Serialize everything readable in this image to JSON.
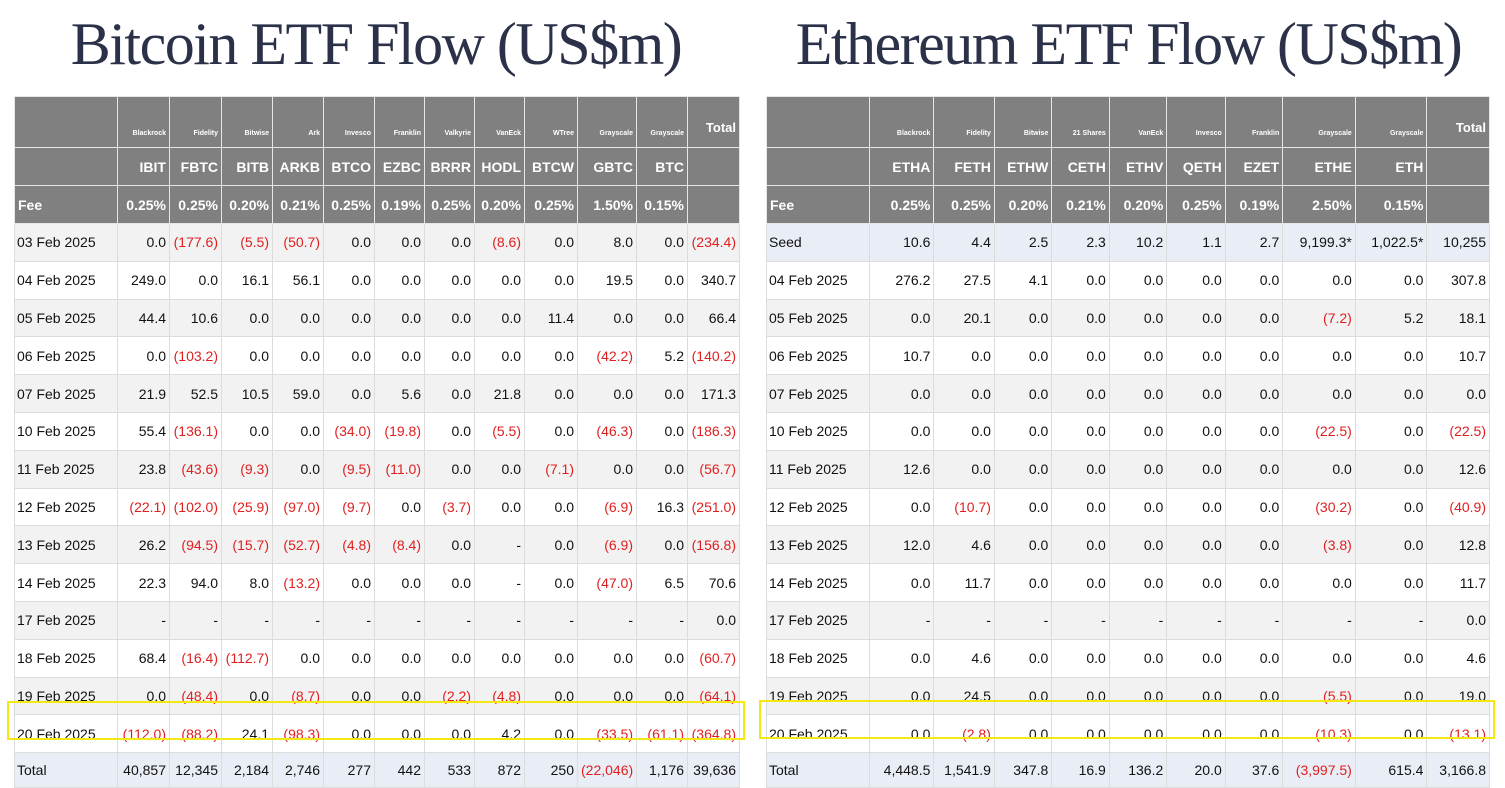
{
  "btc": {
    "title": "Bitcoin ETF Flow (US$m)",
    "issuers": [
      "Blackrock",
      "Fidelity",
      "Bitwise",
      "Ark",
      "Invesco",
      "Franklin",
      "Valkyrie",
      "VanEck",
      "WTree",
      "Grayscale",
      "Grayscale"
    ],
    "total_header": "Total",
    "tickers": [
      "IBIT",
      "FBTC",
      "BITB",
      "ARKB",
      "BTCO",
      "EZBC",
      "BRRR",
      "HODL",
      "BTCW",
      "GBTC",
      "BTC"
    ],
    "fee_label": "Fee",
    "fees": [
      "0.25%",
      "0.25%",
      "0.20%",
      "0.21%",
      "0.25%",
      "0.19%",
      "0.25%",
      "0.20%",
      "0.25%",
      "1.50%",
      "0.15%"
    ],
    "rows": [
      {
        "date": "03 Feb 2025",
        "values": [
          "0.0",
          "(177.6)",
          "(5.5)",
          "(50.7)",
          "0.0",
          "0.0",
          "0.0",
          "(8.6)",
          "0.0",
          "8.0",
          "0.0"
        ],
        "total": "(234.4)"
      },
      {
        "date": "04 Feb 2025",
        "values": [
          "249.0",
          "0.0",
          "16.1",
          "56.1",
          "0.0",
          "0.0",
          "0.0",
          "0.0",
          "0.0",
          "19.5",
          "0.0"
        ],
        "total": "340.7"
      },
      {
        "date": "05 Feb 2025",
        "values": [
          "44.4",
          "10.6",
          "0.0",
          "0.0",
          "0.0",
          "0.0",
          "0.0",
          "0.0",
          "11.4",
          "0.0",
          "0.0"
        ],
        "total": "66.4"
      },
      {
        "date": "06 Feb 2025",
        "values": [
          "0.0",
          "(103.2)",
          "0.0",
          "0.0",
          "0.0",
          "0.0",
          "0.0",
          "0.0",
          "0.0",
          "(42.2)",
          "5.2"
        ],
        "total": "(140.2)"
      },
      {
        "date": "07 Feb 2025",
        "values": [
          "21.9",
          "52.5",
          "10.5",
          "59.0",
          "0.0",
          "5.6",
          "0.0",
          "21.8",
          "0.0",
          "0.0",
          "0.0"
        ],
        "total": "171.3"
      },
      {
        "date": "10 Feb 2025",
        "values": [
          "55.4",
          "(136.1)",
          "0.0",
          "0.0",
          "(34.0)",
          "(19.8)",
          "0.0",
          "(5.5)",
          "0.0",
          "(46.3)",
          "0.0"
        ],
        "total": "(186.3)"
      },
      {
        "date": "11 Feb 2025",
        "values": [
          "23.8",
          "(43.6)",
          "(9.3)",
          "0.0",
          "(9.5)",
          "(11.0)",
          "0.0",
          "0.0",
          "(7.1)",
          "0.0",
          "0.0"
        ],
        "total": "(56.7)"
      },
      {
        "date": "12 Feb 2025",
        "values": [
          "(22.1)",
          "(102.0)",
          "(25.9)",
          "(97.0)",
          "(9.7)",
          "0.0",
          "(3.7)",
          "0.0",
          "0.0",
          "(6.9)",
          "16.3"
        ],
        "total": "(251.0)"
      },
      {
        "date": "13 Feb 2025",
        "values": [
          "26.2",
          "(94.5)",
          "(15.7)",
          "(52.7)",
          "(4.8)",
          "(8.4)",
          "0.0",
          "-",
          "0.0",
          "(6.9)",
          "0.0"
        ],
        "total": "(156.8)"
      },
      {
        "date": "14 Feb 2025",
        "values": [
          "22.3",
          "94.0",
          "8.0",
          "(13.2)",
          "0.0",
          "0.0",
          "0.0",
          "-",
          "0.0",
          "(47.0)",
          "6.5"
        ],
        "total": "70.6"
      },
      {
        "date": "17 Feb 2025",
        "values": [
          "-",
          "-",
          "-",
          "-",
          "-",
          "-",
          "-",
          "-",
          "-",
          "-",
          "-"
        ],
        "total": "0.0"
      },
      {
        "date": "18 Feb 2025",
        "values": [
          "68.4",
          "(16.4)",
          "(112.7)",
          "0.0",
          "0.0",
          "0.0",
          "0.0",
          "0.0",
          "0.0",
          "0.0",
          "0.0"
        ],
        "total": "(60.7)"
      },
      {
        "date": "19 Feb 2025",
        "values": [
          "0.0",
          "(48.4)",
          "0.0",
          "(8.7)",
          "0.0",
          "0.0",
          "(2.2)",
          "(4.8)",
          "0.0",
          "0.0",
          "0.0"
        ],
        "total": "(64.1)"
      },
      {
        "date": "20 Feb 2025",
        "values": [
          "(112.0)",
          "(88.2)",
          "24.1",
          "(98.3)",
          "0.0",
          "0.0",
          "0.0",
          "4.2",
          "0.0",
          "(33.5)",
          "(61.1)"
        ],
        "total": "(364.8)"
      }
    ],
    "total_row": {
      "label": "Total",
      "values": [
        "40,857",
        "12,345",
        "2,184",
        "2,746",
        "277",
        "442",
        "533",
        "872",
        "250",
        "(22,046)",
        "1,176"
      ],
      "total": "39,636"
    }
  },
  "eth": {
    "title": "Ethereum ETF Flow (US$m)",
    "issuers": [
      "Blackrock",
      "Fidelity",
      "Bitwise",
      "21 Shares",
      "VanEck",
      "Invesco",
      "Franklin",
      "Grayscale",
      "Grayscale"
    ],
    "total_header": "Total",
    "tickers": [
      "ETHA",
      "FETH",
      "ETHW",
      "CETH",
      "ETHV",
      "QETH",
      "EZET",
      "ETHE",
      "ETH"
    ],
    "fee_label": "Fee",
    "fees": [
      "0.25%",
      "0.25%",
      "0.20%",
      "0.21%",
      "0.20%",
      "0.25%",
      "0.19%",
      "2.50%",
      "0.15%"
    ],
    "seed": {
      "label": "Seed",
      "values": [
        "10.6",
        "4.4",
        "2.5",
        "2.3",
        "10.2",
        "1.1",
        "2.7",
        "9,199.3*",
        "1,022.5*"
      ],
      "total": "10,255"
    },
    "rows": [
      {
        "date": "04 Feb 2025",
        "values": [
          "276.2",
          "27.5",
          "4.1",
          "0.0",
          "0.0",
          "0.0",
          "0.0",
          "0.0",
          "0.0"
        ],
        "total": "307.8"
      },
      {
        "date": "05 Feb 2025",
        "values": [
          "0.0",
          "20.1",
          "0.0",
          "0.0",
          "0.0",
          "0.0",
          "0.0",
          "(7.2)",
          "5.2"
        ],
        "total": "18.1"
      },
      {
        "date": "06 Feb 2025",
        "values": [
          "10.7",
          "0.0",
          "0.0",
          "0.0",
          "0.0",
          "0.0",
          "0.0",
          "0.0",
          "0.0"
        ],
        "total": "10.7"
      },
      {
        "date": "07 Feb 2025",
        "values": [
          "0.0",
          "0.0",
          "0.0",
          "0.0",
          "0.0",
          "0.0",
          "0.0",
          "0.0",
          "0.0"
        ],
        "total": "0.0"
      },
      {
        "date": "10 Feb 2025",
        "values": [
          "0.0",
          "0.0",
          "0.0",
          "0.0",
          "0.0",
          "0.0",
          "0.0",
          "(22.5)",
          "0.0"
        ],
        "total": "(22.5)"
      },
      {
        "date": "11 Feb 2025",
        "values": [
          "12.6",
          "0.0",
          "0.0",
          "0.0",
          "0.0",
          "0.0",
          "0.0",
          "0.0",
          "0.0"
        ],
        "total": "12.6"
      },
      {
        "date": "12 Feb 2025",
        "values": [
          "0.0",
          "(10.7)",
          "0.0",
          "0.0",
          "0.0",
          "0.0",
          "0.0",
          "(30.2)",
          "0.0"
        ],
        "total": "(40.9)"
      },
      {
        "date": "13 Feb 2025",
        "values": [
          "12.0",
          "4.6",
          "0.0",
          "0.0",
          "0.0",
          "0.0",
          "0.0",
          "(3.8)",
          "0.0"
        ],
        "total": "12.8"
      },
      {
        "date": "14 Feb 2025",
        "values": [
          "0.0",
          "11.7",
          "0.0",
          "0.0",
          "0.0",
          "0.0",
          "0.0",
          "0.0",
          "0.0"
        ],
        "total": "11.7"
      },
      {
        "date": "17 Feb 2025",
        "values": [
          "-",
          "-",
          "-",
          "-",
          "-",
          "-",
          "-",
          "-",
          "-"
        ],
        "total": "0.0"
      },
      {
        "date": "18 Feb 2025",
        "values": [
          "0.0",
          "4.6",
          "0.0",
          "0.0",
          "0.0",
          "0.0",
          "0.0",
          "0.0",
          "0.0"
        ],
        "total": "4.6"
      },
      {
        "date": "19 Feb 2025",
        "values": [
          "0.0",
          "24.5",
          "0.0",
          "0.0",
          "0.0",
          "0.0",
          "0.0",
          "(5.5)",
          "0.0"
        ],
        "total": "19.0"
      },
      {
        "date": "20 Feb 2025",
        "values": [
          "0.0",
          "(2.8)",
          "0.0",
          "0.0",
          "0.0",
          "0.0",
          "0.0",
          "(10.3)",
          "0.0"
        ],
        "total": "(13.1)"
      }
    ],
    "total_row": {
      "label": "Total",
      "values": [
        "4,448.5",
        "1,541.9",
        "347.8",
        "16.9",
        "136.2",
        "20.0",
        "37.6",
        "(3,997.5)",
        "615.4"
      ],
      "total": "3,166.8"
    }
  },
  "colors": {
    "header_bg": "#808080",
    "negative": "#e02020",
    "highlight": "#f5e711",
    "title": "#2b3148",
    "seed_row": "#e9edf6"
  }
}
